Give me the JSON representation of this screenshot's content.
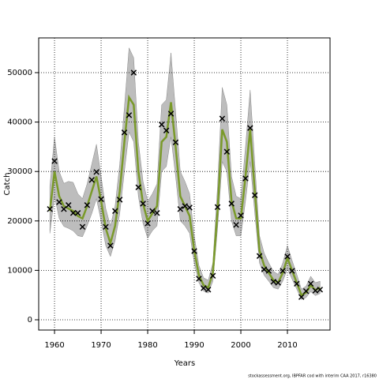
{
  "chart_data": {
    "type": "line",
    "xlabel": "Years",
    "ylabel": "Catch",
    "footnote": "stockassessment.org, IBPFAR cod with interim CAA 2017, r16380",
    "x": [
      1959,
      1960,
      1961,
      1962,
      1963,
      1964,
      1965,
      1966,
      1967,
      1968,
      1969,
      1970,
      1971,
      1972,
      1973,
      1974,
      1975,
      1976,
      1977,
      1978,
      1979,
      1980,
      1981,
      1982,
      1983,
      1984,
      1985,
      1986,
      1987,
      1988,
      1989,
      1990,
      1991,
      1992,
      1993,
      1994,
      1995,
      1996,
      1997,
      1998,
      1999,
      2000,
      2001,
      2002,
      2003,
      2004,
      2005,
      2006,
      2007,
      2008,
      2009,
      2010,
      2011,
      2012,
      2013,
      2014,
      2015,
      2016,
      2017
    ],
    "fit": [
      22000,
      30000,
      25000,
      23000,
      22500,
      22000,
      21000,
      20500,
      23000,
      26000,
      29000,
      24000,
      18500,
      15500,
      19000,
      26000,
      36000,
      45000,
      43500,
      30000,
      23500,
      20000,
      21500,
      23000,
      36000,
      37000,
      44000,
      35000,
      25000,
      23000,
      21000,
      14000,
      9000,
      7000,
      6500,
      9500,
      22000,
      38500,
      36000,
      24000,
      20500,
      20500,
      29000,
      38500,
      26000,
      14000,
      11000,
      9500,
      8000,
      7500,
      9500,
      12500,
      10000,
      7500,
      5000,
      5500,
      7000,
      6000,
      6500
    ],
    "band_upper": [
      27000,
      37000,
      30000,
      27600,
      28000,
      27800,
      25500,
      24500,
      27500,
      31500,
      35500,
      29000,
      22500,
      19000,
      23000,
      31500,
      43000,
      55000,
      53000,
      36000,
      28000,
      24000,
      25500,
      27500,
      43500,
      44500,
      54000,
      42000,
      30000,
      28000,
      25500,
      17000,
      11000,
      8500,
      8000,
      11500,
      27000,
      47000,
      43500,
      29000,
      25000,
      24500,
      35000,
      46500,
      31500,
      17000,
      13500,
      11500,
      9800,
      9200,
      11500,
      15000,
      12000,
      9200,
      6200,
      6800,
      8800,
      7500,
      7800
    ],
    "band_lower": [
      17500,
      25000,
      20500,
      18900,
      18500,
      18000,
      17000,
      16800,
      19000,
      21500,
      24500,
      20000,
      15000,
      12800,
      16000,
      21500,
      30000,
      38000,
      36000,
      25000,
      19500,
      16500,
      18000,
      19000,
      30000,
      31000,
      37000,
      29000,
      20000,
      19000,
      17500,
      11500,
      7500,
      5800,
      5400,
      7800,
      18500,
      32000,
      30000,
      20000,
      17000,
      17000,
      24000,
      32000,
      21500,
      11500,
      9000,
      7800,
      6500,
      6200,
      7800,
      10300,
      8200,
      6200,
      4100,
      4500,
      5700,
      4900,
      5300
    ],
    "observed": [
      22400,
      32100,
      23800,
      22400,
      23200,
      21600,
      21600,
      18800,
      23200,
      28300,
      29900,
      24400,
      18800,
      15000,
      22000,
      24300,
      37900,
      41400,
      50000,
      26800,
      23500,
      19500,
      22000,
      21600,
      39500,
      38300,
      41700,
      35900,
      22400,
      23000,
      22700,
      13900,
      8300,
      6400,
      6100,
      8900,
      22800,
      40700,
      34000,
      23500,
      19200,
      21100,
      28600,
      38800,
      25200,
      12900,
      10200,
      9900,
      7700,
      7500,
      9900,
      12800,
      9900,
      7300,
      4600,
      5800,
      7300,
      5900,
      6100
    ],
    "fit_color": "#7a9a2a",
    "band_color": "#bdbdbd",
    "marker_color": "#000000",
    "xlim": [
      1956.6,
      2019.15
    ],
    "ylim": [
      -2077,
      57030
    ],
    "xticks": [
      1960,
      1970,
      1980,
      1990,
      2000,
      2010
    ],
    "yticks": [
      0,
      10000,
      20000,
      30000,
      40000,
      50000
    ],
    "grid": true
  }
}
